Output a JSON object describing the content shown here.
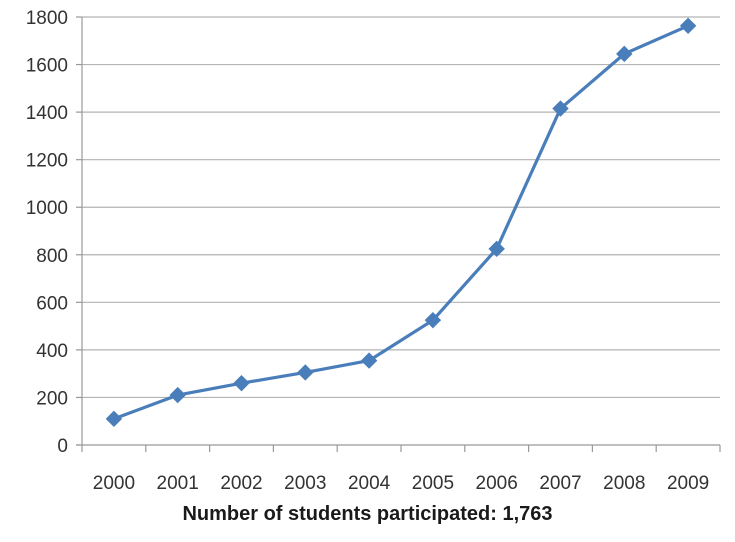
{
  "chart_data": {
    "type": "line",
    "title": "",
    "xlabel": "Number of students participated: 1,763",
    "ylabel": "",
    "categories": [
      "2000",
      "2001",
      "2002",
      "2003",
      "2004",
      "2005",
      "2006",
      "2007",
      "2008",
      "2009"
    ],
    "series": [
      {
        "values": [
          110,
          210,
          260,
          305,
          355,
          525,
          825,
          1415,
          1645,
          1763
        ],
        "color": "#4a7ebb",
        "marker": "diamond"
      }
    ],
    "ylim": [
      0,
      1800
    ],
    "yticks": [
      0,
      200,
      400,
      600,
      800,
      1000,
      1200,
      1400,
      1600,
      1800
    ],
    "grid": true,
    "legend": "none"
  }
}
